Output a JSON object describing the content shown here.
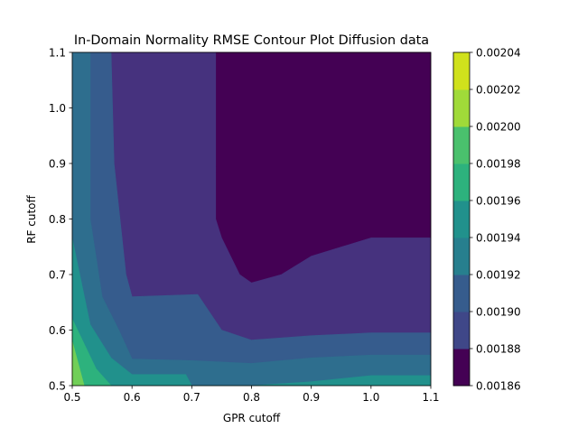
{
  "chart_data": {
    "type": "contour",
    "title": "In-Domain Normality RMSE Contour Plot Diffusion data",
    "xlabel": "GPR cutoff",
    "ylabel": "RF cutoff",
    "xlim": [
      0.5,
      1.1
    ],
    "ylim": [
      0.5,
      1.1
    ],
    "x_ticks": [
      "0.5",
      "0.6",
      "0.7",
      "0.8",
      "0.9",
      "1.0",
      "1.1"
    ],
    "y_ticks": [
      "0.5",
      "0.6",
      "0.7",
      "0.8",
      "0.9",
      "1.0",
      "1.1"
    ],
    "colorbar": {
      "range": [
        0.00186,
        0.00204
      ],
      "ticks": [
        "0.00186",
        "0.00188",
        "0.00190",
        "0.00192",
        "0.00194",
        "0.00196",
        "0.00198",
        "0.00200",
        "0.00202",
        "0.00204"
      ],
      "colors": [
        "#481b6d",
        "#46327e",
        "#3f4788",
        "#365c8d",
        "#2e6e8e",
        "#277f8e",
        "#21918c",
        "#1fa187",
        "#2db27d",
        "#4ac16d",
        "#71cf57",
        "#a0da39",
        "#d0e11c"
      ]
    },
    "levels": [
      {
        "min": 0.00186,
        "max": 0.00188,
        "color": "#440154",
        "region": [
          [
            0.74,
            1.1
          ],
          [
            1.1,
            1.1
          ],
          [
            1.1,
            0.766
          ],
          [
            1.0,
            0.766
          ],
          [
            0.9,
            0.733
          ],
          [
            0.85,
            0.7
          ],
          [
            0.8,
            0.685
          ],
          [
            0.78,
            0.7
          ],
          [
            0.75,
            0.766
          ],
          [
            0.74,
            0.8
          ]
        ]
      },
      {
        "min": 0.00188,
        "max": 0.0019,
        "color": "#46327e",
        "region": [
          [
            0.565,
            1.1
          ],
          [
            0.74,
            1.1
          ],
          [
            0.74,
            0.8
          ],
          [
            0.75,
            0.766
          ],
          [
            0.78,
            0.7
          ],
          [
            0.8,
            0.685
          ],
          [
            0.85,
            0.7
          ],
          [
            0.9,
            0.733
          ],
          [
            1.0,
            0.766
          ],
          [
            1.1,
            0.766
          ],
          [
            1.1,
            0.595
          ],
          [
            1.0,
            0.595
          ],
          [
            0.9,
            0.59
          ],
          [
            0.8,
            0.582
          ],
          [
            0.75,
            0.6
          ],
          [
            0.71,
            0.664
          ],
          [
            0.6,
            0.66
          ],
          [
            0.59,
            0.7
          ],
          [
            0.57,
            0.9
          ]
        ]
      },
      {
        "min": 0.0019,
        "max": 0.00192,
        "color": "#365c8d",
        "region": [
          [
            0.53,
            1.1
          ],
          [
            0.565,
            1.1
          ],
          [
            0.57,
            0.9
          ],
          [
            0.59,
            0.7
          ],
          [
            0.6,
            0.66
          ],
          [
            0.71,
            0.664
          ],
          [
            0.75,
            0.6
          ],
          [
            0.8,
            0.582
          ],
          [
            0.9,
            0.59
          ],
          [
            1.0,
            0.595
          ],
          [
            1.1,
            0.595
          ],
          [
            1.1,
            0.555
          ],
          [
            1.0,
            0.555
          ],
          [
            0.9,
            0.55
          ],
          [
            0.8,
            0.54
          ],
          [
            0.7,
            0.545
          ],
          [
            0.6,
            0.548
          ],
          [
            0.578,
            0.6
          ],
          [
            0.55,
            0.66
          ],
          [
            0.53,
            0.8
          ]
        ]
      },
      {
        "min": 0.00192,
        "max": 0.00194,
        "color": "#2e6e8e",
        "region": [
          [
            0.5,
            1.1
          ],
          [
            0.53,
            1.1
          ],
          [
            0.53,
            0.8
          ],
          [
            0.55,
            0.66
          ],
          [
            0.578,
            0.6
          ],
          [
            0.6,
            0.548
          ],
          [
            0.7,
            0.545
          ],
          [
            0.8,
            0.54
          ],
          [
            0.9,
            0.55
          ],
          [
            1.0,
            0.555
          ],
          [
            1.1,
            0.555
          ],
          [
            1.1,
            0.518
          ],
          [
            1.0,
            0.518
          ],
          [
            0.9,
            0.507
          ],
          [
            0.8,
            0.5
          ],
          [
            0.7,
            0.5
          ],
          [
            0.69,
            0.52
          ],
          [
            0.6,
            0.52
          ],
          [
            0.565,
            0.55
          ],
          [
            0.53,
            0.61
          ],
          [
            0.5,
            0.765
          ]
        ]
      },
      {
        "min": 0.00194,
        "max": 0.00196,
        "color": "#21918c",
        "region": [
          [
            0.5,
            0.765
          ],
          [
            0.53,
            0.61
          ],
          [
            0.565,
            0.55
          ],
          [
            0.6,
            0.52
          ],
          [
            0.69,
            0.52
          ],
          [
            0.7,
            0.5
          ],
          [
            0.8,
            0.5
          ],
          [
            0.9,
            0.507
          ],
          [
            1.0,
            0.518
          ],
          [
            1.1,
            0.518
          ],
          [
            1.1,
            0.5
          ],
          [
            0.6,
            0.5
          ],
          [
            0.565,
            0.5
          ],
          [
            0.54,
            0.53
          ],
          [
            0.5,
            0.62
          ]
        ]
      },
      {
        "min": 0.00196,
        "max": 0.00198,
        "color": "#2db27d",
        "region": [
          [
            0.5,
            0.62
          ],
          [
            0.54,
            0.53
          ],
          [
            0.565,
            0.5
          ],
          [
            0.52,
            0.5
          ],
          [
            0.5,
            0.58
          ]
        ]
      },
      {
        "min": 0.00198,
        "max": 0.002,
        "color": "#71cf57",
        "region": [
          [
            0.5,
            0.58
          ],
          [
            0.52,
            0.5
          ],
          [
            0.5,
            0.5
          ],
          [
            0.5,
            0.545
          ]
        ]
      },
      {
        "min": 0.002,
        "max": 0.00204,
        "color": "#d0e11c",
        "region": [
          [
            0.5,
            0.545
          ],
          [
            0.5,
            0.5
          ],
          [
            0.5,
            0.5
          ]
        ]
      }
    ]
  }
}
